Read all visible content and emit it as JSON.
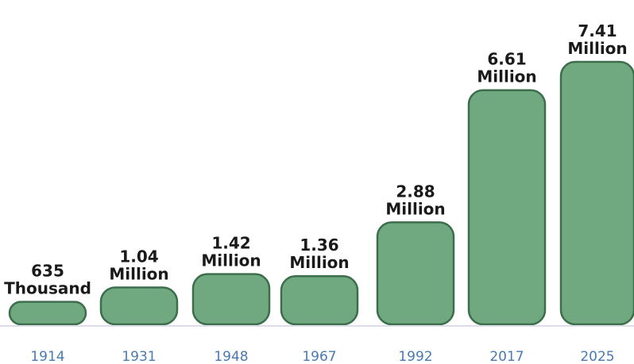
{
  "colors": {
    "bar_fill": "#70a880",
    "bar_stroke": "#3d6e4c",
    "tick_text": "#4a7ab0",
    "baseline": "#dcdde6"
  },
  "chart_data": {
    "type": "bar",
    "title": "",
    "xlabel": "",
    "ylabel": "",
    "ylim": [
      0,
      7.41
    ],
    "grid": false,
    "categories": [
      "1914",
      "1931",
      "1948",
      "1967",
      "1992",
      "2017",
      "2025"
    ],
    "values": [
      0.635,
      1.04,
      1.42,
      1.36,
      2.88,
      6.61,
      7.41
    ],
    "data_labels": [
      [
        "635",
        "Thousand"
      ],
      [
        "1.04",
        "Million"
      ],
      [
        "1.42",
        "Million"
      ],
      [
        "1.36",
        "Million"
      ],
      [
        "2.88",
        "Million"
      ],
      [
        "6.61",
        "Million"
      ],
      [
        "7.41",
        "Million"
      ]
    ]
  }
}
